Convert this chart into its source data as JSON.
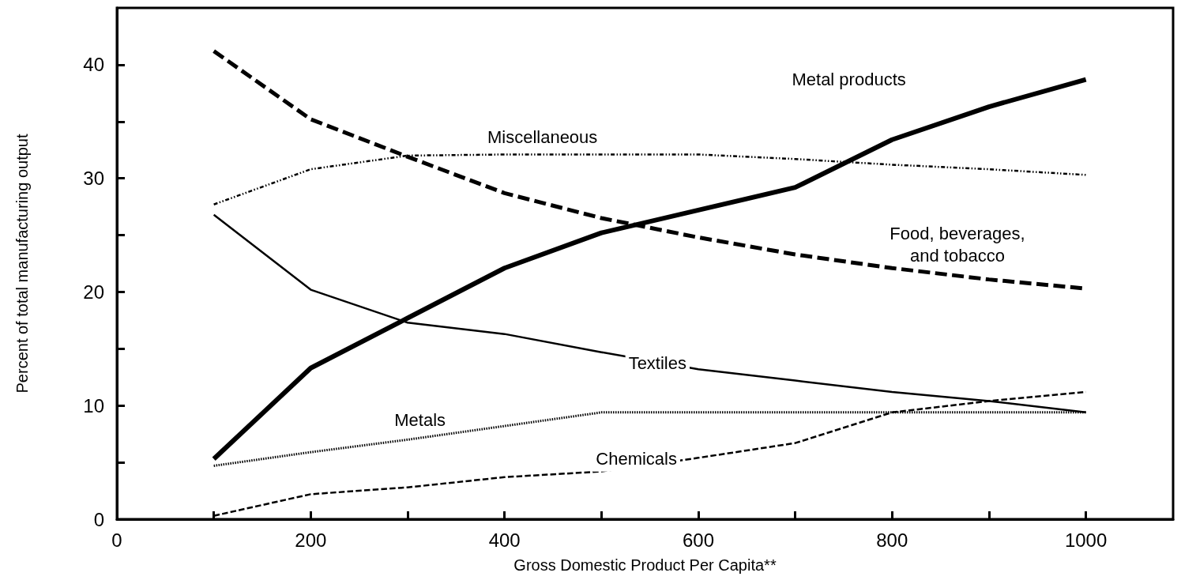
{
  "chart_data": {
    "type": "line",
    "xlabel": "Gross Domestic Product Per Capita**",
    "ylabel": "Percent of total manufacturing output",
    "x": [
      100,
      200,
      300,
      400,
      500,
      600,
      700,
      800,
      900,
      1000
    ],
    "series": [
      {
        "name": "Metal products",
        "color": "#000000",
        "line_style": "solid",
        "values": [
          5.3,
          13.3,
          17.7,
          22.1,
          25.2,
          27.2,
          29.2,
          33.4,
          36.3,
          38.7
        ]
      },
      {
        "name": "Food, beverages,\nand tobacco",
        "color": "#000000",
        "line_style": "dashed",
        "values": [
          41.2,
          35.2,
          31.9,
          28.7,
          26.5,
          24.8,
          23.3,
          22.1,
          21.1,
          20.3
        ]
      },
      {
        "name": "Miscellaneous",
        "color": "#000000",
        "line_style": "dashdot",
        "values": [
          27.7,
          30.8,
          32.0,
          32.1,
          32.1,
          32.1,
          31.7,
          31.2,
          30.8,
          30.3
        ]
      },
      {
        "name": "Textiles",
        "color": "#000000",
        "line_style": "solid",
        "values": [
          26.8,
          20.2,
          17.3,
          16.3,
          14.7,
          13.2,
          12.2,
          11.2,
          10.4,
          9.4
        ]
      },
      {
        "name": "Metals",
        "color": "#000000",
        "line_style": "dotted",
        "values": [
          4.7,
          5.9,
          7.0,
          8.2,
          9.4,
          9.4,
          9.4,
          9.4,
          9.4,
          9.4
        ]
      },
      {
        "name": "Chemicals",
        "color": "#000000",
        "line_style": "dashed",
        "values": [
          0.3,
          2.2,
          2.8,
          3.7,
          4.2,
          5.4,
          6.7,
          9.4,
          10.4,
          11.2
        ]
      }
    ],
    "xlim": [
      0,
      1090
    ],
    "xticks": [
      0,
      {
        "value": 100,
        "label": null
      },
      200,
      {
        "value": 300,
        "label": null
      },
      400,
      {
        "value": 500,
        "label": null
      },
      600,
      {
        "value": 700,
        "label": null
      },
      800,
      {
        "value": 900,
        "label": null
      },
      1000
    ],
    "ylim": [
      0,
      45
    ],
    "yticks": [
      0,
      {
        "value": 5,
        "label": null
      },
      10,
      {
        "value": 15,
        "label": null
      },
      20,
      {
        "value": 25,
        "label": null
      },
      30,
      {
        "value": 35,
        "label": null
      },
      40
    ],
    "grid": false,
    "legend": false,
    "marker": "none"
  }
}
